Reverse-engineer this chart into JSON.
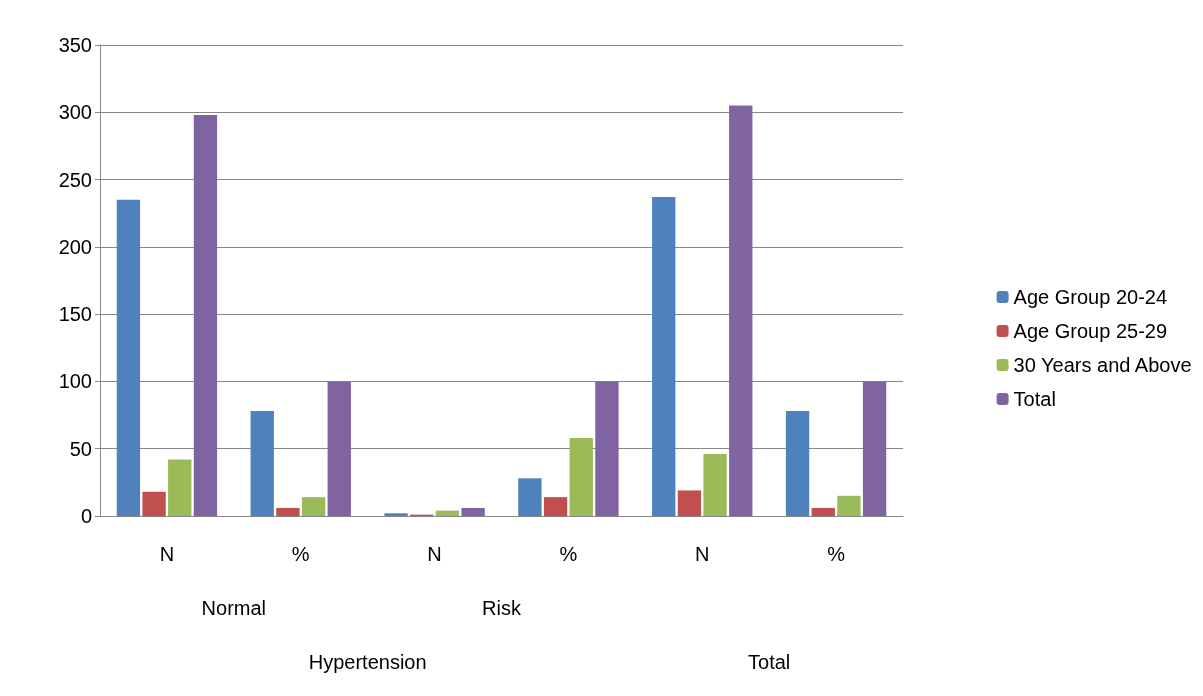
{
  "chart_data": {
    "type": "bar",
    "categories": [
      "N",
      "%",
      "N",
      "%",
      "N",
      "%"
    ],
    "series": [
      {
        "name": "Age Group 20-24",
        "color": "#4f81bd",
        "values": [
          235,
          78,
          2,
          28,
          237,
          78
        ]
      },
      {
        "name": "Age Group 25-29",
        "color": "#c0504d",
        "values": [
          18,
          6,
          1,
          14,
          19,
          6
        ]
      },
      {
        "name": "30 Years and Above",
        "color": "#9bbb59",
        "values": [
          42,
          14,
          4,
          58,
          46,
          15
        ]
      },
      {
        "name": "Total",
        "color": "#8064a2",
        "values": [
          298,
          100,
          6,
          100,
          305,
          100
        ]
      }
    ],
    "annotations": [
      "Normal",
      "Risk",
      "Hypertension",
      "Total"
    ],
    "ylim": [
      0,
      350
    ],
    "yticks": [
      0,
      50,
      100,
      150,
      200,
      250,
      300,
      350
    ],
    "grid": "y",
    "legend": "right"
  }
}
